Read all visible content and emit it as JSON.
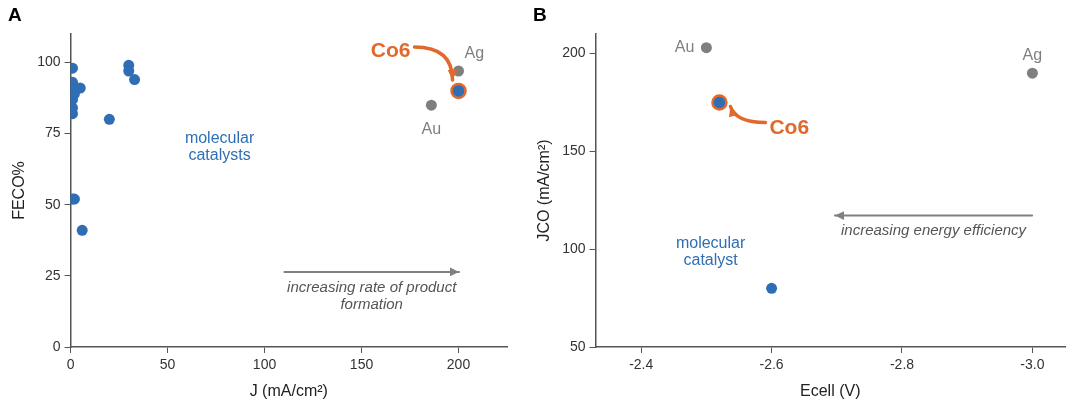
{
  "chart_data": [
    {
      "type": "scatter",
      "title": "A",
      "x_label": "J (mA/cm²)",
      "y_label": "FECO%",
      "xlim": [
        0,
        225
      ],
      "xticks": [
        0,
        50,
        100,
        150,
        200
      ],
      "ylim": [
        0,
        110
      ],
      "yticks": [
        0,
        25,
        50,
        75,
        100
      ],
      "grid": false,
      "series": [
        {
          "name": "molecular catalysts",
          "color": "#2f6eb5",
          "marker": "circle",
          "x": [
            1,
            1,
            1,
            1,
            1,
            1,
            1,
            2,
            2,
            3,
            5,
            6,
            20,
            30,
            30,
            33
          ],
          "values": [
            98,
            93,
            90,
            87,
            84,
            82,
            52,
            52,
            89,
            91,
            91,
            41,
            80,
            99,
            97,
            94
          ]
        },
        {
          "name": "Au",
          "color": "#7f7f7f",
          "marker": "circle",
          "x": [
            186
          ],
          "values": [
            85
          ]
        },
        {
          "name": "Ag",
          "color": "#7f7f7f",
          "marker": "circle",
          "x": [
            200
          ],
          "values": [
            97
          ]
        },
        {
          "name": "Co6",
          "color": "#e0692b",
          "marker": "ring",
          "x": [
            200
          ],
          "values": [
            90
          ]
        }
      ],
      "annotations": [
        "increasing rate of product formation"
      ]
    },
    {
      "type": "scatter",
      "title": "B",
      "x_label": "Ecell (V)",
      "y_label": "JCO (mA/cm²)",
      "xlim": [
        -2.33,
        -3.05
      ],
      "xticks": [
        -2.4,
        -2.6,
        -2.8,
        {
          "value": -3,
          "label": "-3.0"
        }
      ],
      "ylim": [
        50,
        210
      ],
      "yticks": [
        50,
        100,
        150,
        200
      ],
      "grid": false,
      "series": [
        {
          "name": "molecular catalyst",
          "color": "#2f6eb5",
          "marker": "circle",
          "x": [
            -2.6
          ],
          "values": [
            80
          ]
        },
        {
          "name": "Au",
          "color": "#7f7f7f",
          "marker": "circle",
          "x": [
            -2.5
          ],
          "values": [
            203
          ]
        },
        {
          "name": "Ag",
          "color": "#7f7f7f",
          "marker": "circle",
          "x": [
            -3.0
          ],
          "values": [
            190
          ]
        },
        {
          "name": "Co6",
          "color": "#e0692b",
          "marker": "ring",
          "x": [
            -2.52
          ],
          "values": [
            175
          ]
        }
      ],
      "annotations": [
        "increasing energy efficiency"
      ]
    }
  ]
}
